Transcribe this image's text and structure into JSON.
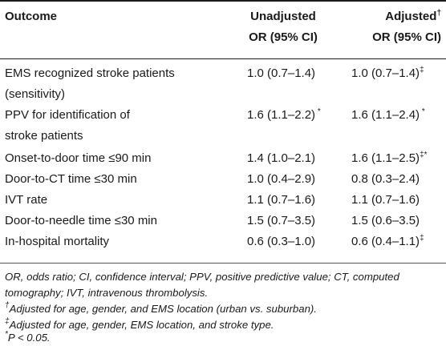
{
  "header": {
    "outcome": "Outcome",
    "unadjusted_line1": "Unadjusted",
    "unadjusted_line2": "OR (95% CI)",
    "adjusted_line1": "Adjusted",
    "adjusted_mark": "†",
    "adjusted_line2": "OR (95% CI)"
  },
  "rows": [
    {
      "outcome_line1": "EMS recognized stroke patients",
      "outcome_line2": "(sensitivity)",
      "unadjusted": "1.0 (0.7–1.4)",
      "unadjusted_mark": "",
      "adjusted": "1.0 (0.7–1.4)",
      "adjusted_mark": "‡"
    },
    {
      "outcome_line1": "PPV for identification of",
      "outcome_line2": "stroke patients",
      "unadjusted": "1.6 (1.1–2.2)",
      "unadjusted_mark": " *",
      "adjusted": "1.6 (1.1–2.4)",
      "adjusted_mark": " *"
    },
    {
      "outcome_line1": "Onset-to-door time ≤90 min",
      "outcome_line2": "",
      "unadjusted": "1.4 (1.0–2.1)",
      "unadjusted_mark": "",
      "adjusted": "1.6 (1.1–2.5)",
      "adjusted_mark": "‡*"
    },
    {
      "outcome_line1": "Door-to-CT time ≤30 min",
      "outcome_line2": "",
      "unadjusted": "1.0 (0.4–2.9)",
      "unadjusted_mark": "",
      "adjusted": "0.8 (0.3–2.4)",
      "adjusted_mark": ""
    },
    {
      "outcome_line1": "IVT rate",
      "outcome_line2": "",
      "unadjusted": "1.1 (0.7–1.6)",
      "unadjusted_mark": "",
      "adjusted": "1.1 (0.7–1.6)",
      "adjusted_mark": ""
    },
    {
      "outcome_line1": "Door-to-needle time ≤30 min",
      "outcome_line2": "",
      "unadjusted": "1.5 (0.7–3.5)",
      "unadjusted_mark": "",
      "adjusted": "1.5 (0.6–3.5)",
      "adjusted_mark": ""
    },
    {
      "outcome_line1": "In-hospital mortality",
      "outcome_line2": "",
      "unadjusted": "0.6 (0.3–1.0)",
      "unadjusted_mark": "",
      "adjusted": "0.6 (0.4–1.1)",
      "adjusted_mark": "‡"
    }
  ],
  "footnotes": {
    "abbrev_line1": "OR, odds ratio; CI, confidence interval; PPV, positive predictive value; CT, computed",
    "abbrev_line2": "tomography; IVT, intravenous thrombolysis.",
    "dagger_mark": "†",
    "dagger_text": "Adjusted for age, gender, and EMS location (urban vs. suburban).",
    "ddagger_mark": "‡",
    "ddagger_text": "Adjusted for age, gender, EMS location, and stroke type.",
    "star_mark": "*",
    "star_text": "P < 0.05."
  }
}
